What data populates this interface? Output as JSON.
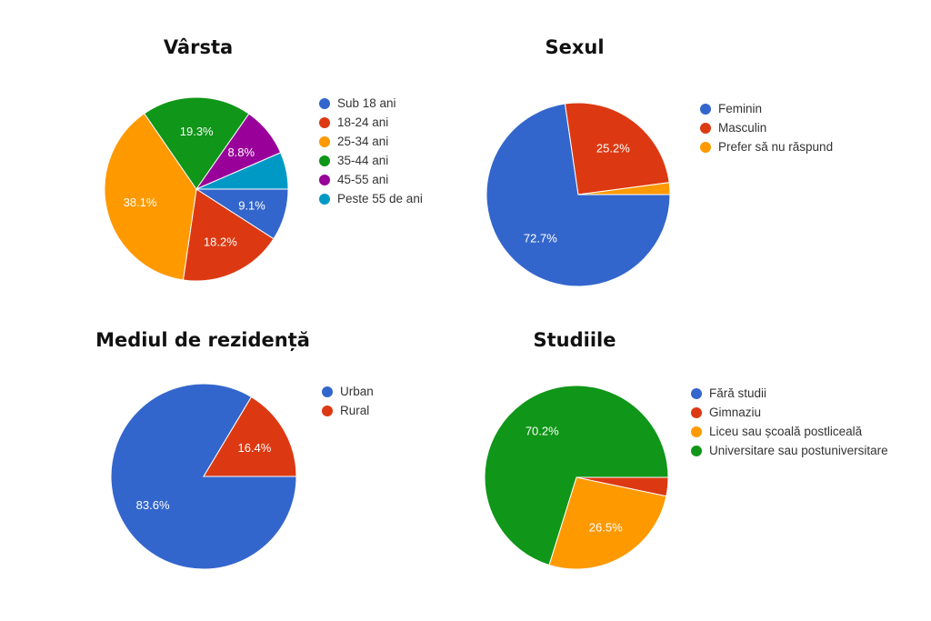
{
  "chart_data": [
    {
      "type": "pie",
      "title": "Vârsta",
      "legend_position": "right",
      "categories": [
        "Sub 18 ani",
        "18-24 ani",
        "25-34 ani",
        "35-44 ani",
        "45-55 ani",
        "Peste 55 de ani"
      ],
      "values": [
        9.1,
        18.2,
        38.1,
        19.3,
        8.8,
        6.5
      ],
      "labels": [
        "9.1%",
        "18.2%",
        "38.1%",
        "19.3%",
        "8.8%",
        ""
      ],
      "colors": [
        "#3366cc",
        "#dc3912",
        "#ff9900",
        "#109618",
        "#990099",
        "#0099c6"
      ]
    },
    {
      "type": "pie",
      "title": "Sexul",
      "legend_position": "right",
      "categories": [
        "Feminin",
        "Masculin",
        "Prefer să nu răspund"
      ],
      "values": [
        72.7,
        25.2,
        2.1
      ],
      "labels": [
        "72.7%",
        "25.2%",
        ""
      ],
      "colors": [
        "#3366cc",
        "#dc3912",
        "#ff9900"
      ]
    },
    {
      "type": "pie",
      "title": "Mediul de rezidență",
      "legend_position": "right",
      "categories": [
        "Urban",
        "Rural"
      ],
      "values": [
        83.6,
        16.4
      ],
      "labels": [
        "83.6%",
        "16.4%"
      ],
      "colors": [
        "#3366cc",
        "#dc3912"
      ]
    },
    {
      "type": "pie",
      "title": "Studiile",
      "legend_position": "right",
      "categories": [
        "Fără studii",
        "Gimnaziu",
        "Liceu sau școală postliceală",
        "Universitare sau postuniversitare"
      ],
      "values": [
        0,
        3.3,
        26.5,
        70.2
      ],
      "labels": [
        "",
        "",
        "26.5%",
        "70.2%"
      ],
      "colors": [
        "#3366cc",
        "#dc3912",
        "#ff9900",
        "#109618"
      ]
    }
  ]
}
